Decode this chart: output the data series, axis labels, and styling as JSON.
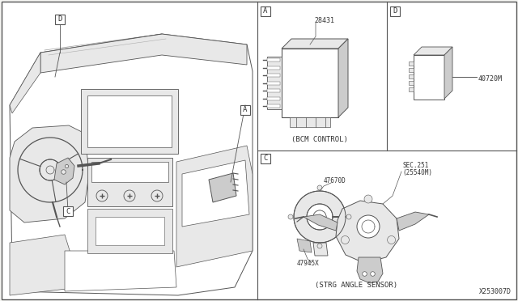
{
  "bg_color": "#f5f5f2",
  "line_color": "#555555",
  "text_color": "#333333",
  "white": "#ffffff",
  "light_gray": "#e8e8e8",
  "mid_gray": "#cccccc",
  "diagram_id": "X253007D",
  "parts": {
    "A_label": "28431",
    "A_caption": "(BCM CONTROL)",
    "D_label": "40720M",
    "C_label1": "47670D",
    "C_label2": "47945X",
    "C_label3_line1": "SEC.251",
    "C_label3_line2": "(25540M)",
    "C_caption": "(STRG ANGLE SENSOR)"
  }
}
